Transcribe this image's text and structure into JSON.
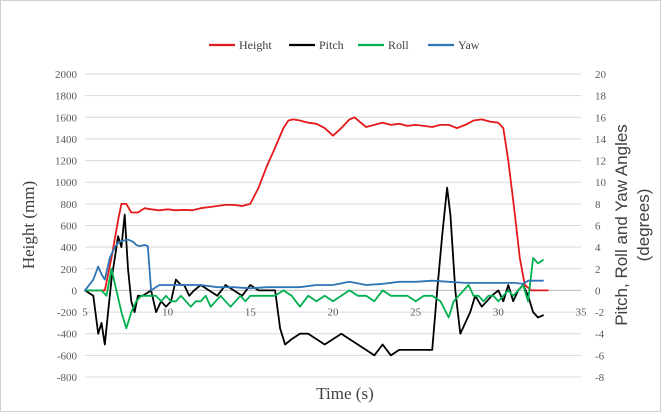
{
  "chart_data": {
    "type": "line",
    "title": "",
    "xlabel": "Time (s)",
    "ylabel": "Height (mm)",
    "y2label_line1": "Pitch, Roll and Yaw Angles",
    "y2label_line2": "(degrees)",
    "xlim": [
      5,
      35
    ],
    "ylim": [
      -800,
      2000
    ],
    "y2lim": [
      -8,
      20
    ],
    "grid": "horizontal",
    "legend_position": "top",
    "x_ticks": [
      "5",
      "10",
      "15",
      "20",
      "25",
      "30",
      "35"
    ],
    "y_ticks": [
      "-800",
      "-600",
      "-400",
      "-200",
      "0",
      "200",
      "400",
      "600",
      "800",
      "1000",
      "1200",
      "1400",
      "1600",
      "1800",
      "2000"
    ],
    "y2_ticks": [
      "-8",
      "-6",
      "-4",
      "-2",
      "0",
      "2",
      "4",
      "6",
      "8",
      "10",
      "12",
      "14",
      "16",
      "18",
      "20"
    ],
    "series": [
      {
        "name": "Height",
        "axis": "left",
        "color": "#e31a1c",
        "x": [
          5,
          6.2,
          6.6,
          7.0,
          7.2,
          7.5,
          7.8,
          8.2,
          8.6,
          9.0,
          9.5,
          10.0,
          10.5,
          11.0,
          11.5,
          12.0,
          12.5,
          13.0,
          13.5,
          14.0,
          14.5,
          15.0,
          15.5,
          16.0,
          16.5,
          17.0,
          17.3,
          17.6,
          18.0,
          18.5,
          19.0,
          19.5,
          20.0,
          20.5,
          21.0,
          21.3,
          21.6,
          22.0,
          22.5,
          23.0,
          23.5,
          24.0,
          24.5,
          25.0,
          25.5,
          26.0,
          26.5,
          27.0,
          27.5,
          28.0,
          28.5,
          29.0,
          29.5,
          30.0,
          30.3,
          30.6,
          31.0,
          31.3,
          31.6,
          32.0,
          33.0
        ],
        "y": [
          0,
          0,
          300,
          650,
          800,
          800,
          720,
          720,
          760,
          750,
          740,
          750,
          740,
          745,
          740,
          760,
          770,
          780,
          790,
          790,
          780,
          800,
          950,
          1150,
          1320,
          1500,
          1570,
          1580,
          1570,
          1550,
          1540,
          1500,
          1430,
          1500,
          1580,
          1600,
          1560,
          1510,
          1530,
          1550,
          1530,
          1540,
          1520,
          1530,
          1520,
          1510,
          1530,
          1530,
          1500,
          1530,
          1570,
          1580,
          1560,
          1550,
          1500,
          1200,
          700,
          300,
          50,
          0,
          0
        ]
      },
      {
        "name": "Pitch",
        "axis": "right",
        "color": "#000000",
        "x": [
          5,
          5.5,
          5.8,
          6.0,
          6.2,
          6.4,
          6.6,
          6.8,
          7.0,
          7.2,
          7.4,
          7.6,
          7.8,
          8.0,
          8.2,
          8.5,
          9.0,
          9.3,
          9.6,
          9.9,
          10.2,
          10.5,
          10.8,
          11.0,
          11.3,
          11.6,
          12.0,
          12.5,
          13.0,
          13.5,
          14.0,
          14.5,
          15.0,
          15.5,
          16.0,
          16.5,
          16.8,
          17.1,
          17.5,
          18.0,
          18.5,
          19.0,
          19.5,
          20.0,
          20.5,
          21.0,
          21.5,
          22.0,
          22.5,
          23.0,
          23.5,
          24.0,
          24.5,
          25.0,
          25.5,
          26.0,
          26.3,
          26.6,
          26.9,
          27.1,
          27.4,
          27.7,
          28.0,
          28.3,
          28.6,
          29.0,
          29.3,
          29.6,
          30.0,
          30.3,
          30.6,
          30.9,
          31.2,
          31.5,
          31.8,
          32.1,
          32.4,
          32.7
        ],
        "y": [
          0,
          -0.5,
          -4,
          -3,
          -5,
          -2,
          1,
          3,
          5,
          4,
          7,
          2,
          -1,
          -2,
          -0.5,
          -0.5,
          0,
          -2,
          -1,
          -1.5,
          -1,
          1,
          0.5,
          0.5,
          -0.5,
          0,
          0.5,
          0,
          -0.5,
          0.5,
          0,
          -0.5,
          0.5,
          0,
          0,
          0,
          -3.5,
          -5,
          -4.5,
          -4,
          -4,
          -4.5,
          -5,
          -4.5,
          -4,
          -4.5,
          -5,
          -5.5,
          -6,
          -5,
          -6,
          -5.5,
          -5.5,
          -5.5,
          -5.5,
          -5.5,
          0,
          5,
          9.5,
          7,
          0,
          -4,
          -3,
          -2,
          -0.5,
          -1.5,
          -1,
          -0.5,
          0,
          -1,
          0.5,
          -1,
          0,
          0.5,
          -0.5,
          -2,
          -2.5,
          -2.3
        ]
      },
      {
        "name": "Roll",
        "axis": "right",
        "color": "#00b050",
        "x": [
          5,
          5.5,
          6.0,
          6.3,
          6.6,
          6.9,
          7.2,
          7.5,
          7.8,
          8.1,
          8.4,
          8.7,
          9.0,
          9.3,
          9.6,
          9.9,
          10.2,
          10.5,
          10.8,
          11.1,
          11.4,
          11.7,
          12.0,
          12.3,
          12.6,
          12.9,
          13.2,
          13.5,
          13.8,
          14.1,
          14.4,
          14.7,
          15.0,
          15.5,
          16.0,
          16.5,
          17.0,
          17.5,
          18.0,
          18.5,
          19.0,
          19.5,
          20.0,
          20.5,
          21.0,
          21.5,
          22.0,
          22.5,
          23.0,
          23.5,
          24.0,
          24.5,
          25.0,
          25.5,
          26.0,
          26.5,
          27.0,
          27.3,
          27.6,
          27.9,
          28.2,
          28.5,
          28.8,
          29.1,
          29.4,
          29.7,
          30.0,
          30.3,
          30.6,
          30.9,
          31.2,
          31.5,
          31.8,
          32.1,
          32.4,
          32.7
        ],
        "y": [
          0,
          0,
          0,
          -0.5,
          2,
          0,
          -2,
          -3.5,
          -2,
          -1,
          -0.5,
          -0.5,
          -0.5,
          -0.5,
          -1,
          -0.5,
          -1,
          -1,
          -0.5,
          -1,
          -1.5,
          -1,
          -1,
          -0.5,
          -1.5,
          -1,
          -0.5,
          -1,
          -1.5,
          -1,
          -0.5,
          -1,
          -0.5,
          -0.5,
          -0.5,
          -0.5,
          0,
          -0.5,
          -1.5,
          -0.5,
          -1,
          -0.5,
          -1,
          -0.5,
          0,
          -0.5,
          -0.5,
          -1,
          0,
          -0.5,
          -0.5,
          -0.5,
          -1,
          -0.5,
          -0.5,
          -1,
          -2.5,
          -1,
          -0.5,
          0,
          0.5,
          -0.5,
          -0.5,
          -1,
          -0.5,
          -0.5,
          -1,
          -0.5,
          0,
          -0.5,
          0,
          0.5,
          -1,
          3,
          2.5,
          2.8
        ]
      },
      {
        "name": "Yaw",
        "axis": "right",
        "color": "#2e75b6",
        "x": [
          5,
          5.5,
          5.8,
          6.0,
          6.2,
          6.5,
          6.8,
          7.0,
          7.3,
          7.6,
          7.9,
          8.1,
          8.3,
          8.6,
          8.8,
          9.0,
          9.5,
          10.0,
          11.0,
          12.0,
          13.0,
          14.0,
          15.0,
          16.0,
          17.0,
          18.0,
          19.0,
          20.0,
          21.0,
          22.0,
          23.0,
          24.0,
          25.0,
          26.0,
          27.0,
          28.0,
          29.0,
          30.0,
          31.0,
          31.5,
          31.8,
          32.1,
          32.7
        ],
        "y": [
          0,
          1,
          2.2,
          1.5,
          1,
          3,
          4,
          4.4,
          4.6,
          4.7,
          4.5,
          4.2,
          4.1,
          4.2,
          4.1,
          0,
          0.5,
          0.5,
          0.5,
          0.5,
          0.3,
          0.3,
          0.2,
          0.3,
          0.3,
          0.3,
          0.5,
          0.5,
          0.8,
          0.5,
          0.6,
          0.8,
          0.8,
          0.9,
          0.8,
          0.7,
          0.7,
          0.7,
          0.7,
          0.6,
          0.9,
          0.9,
          0.9
        ]
      }
    ]
  }
}
